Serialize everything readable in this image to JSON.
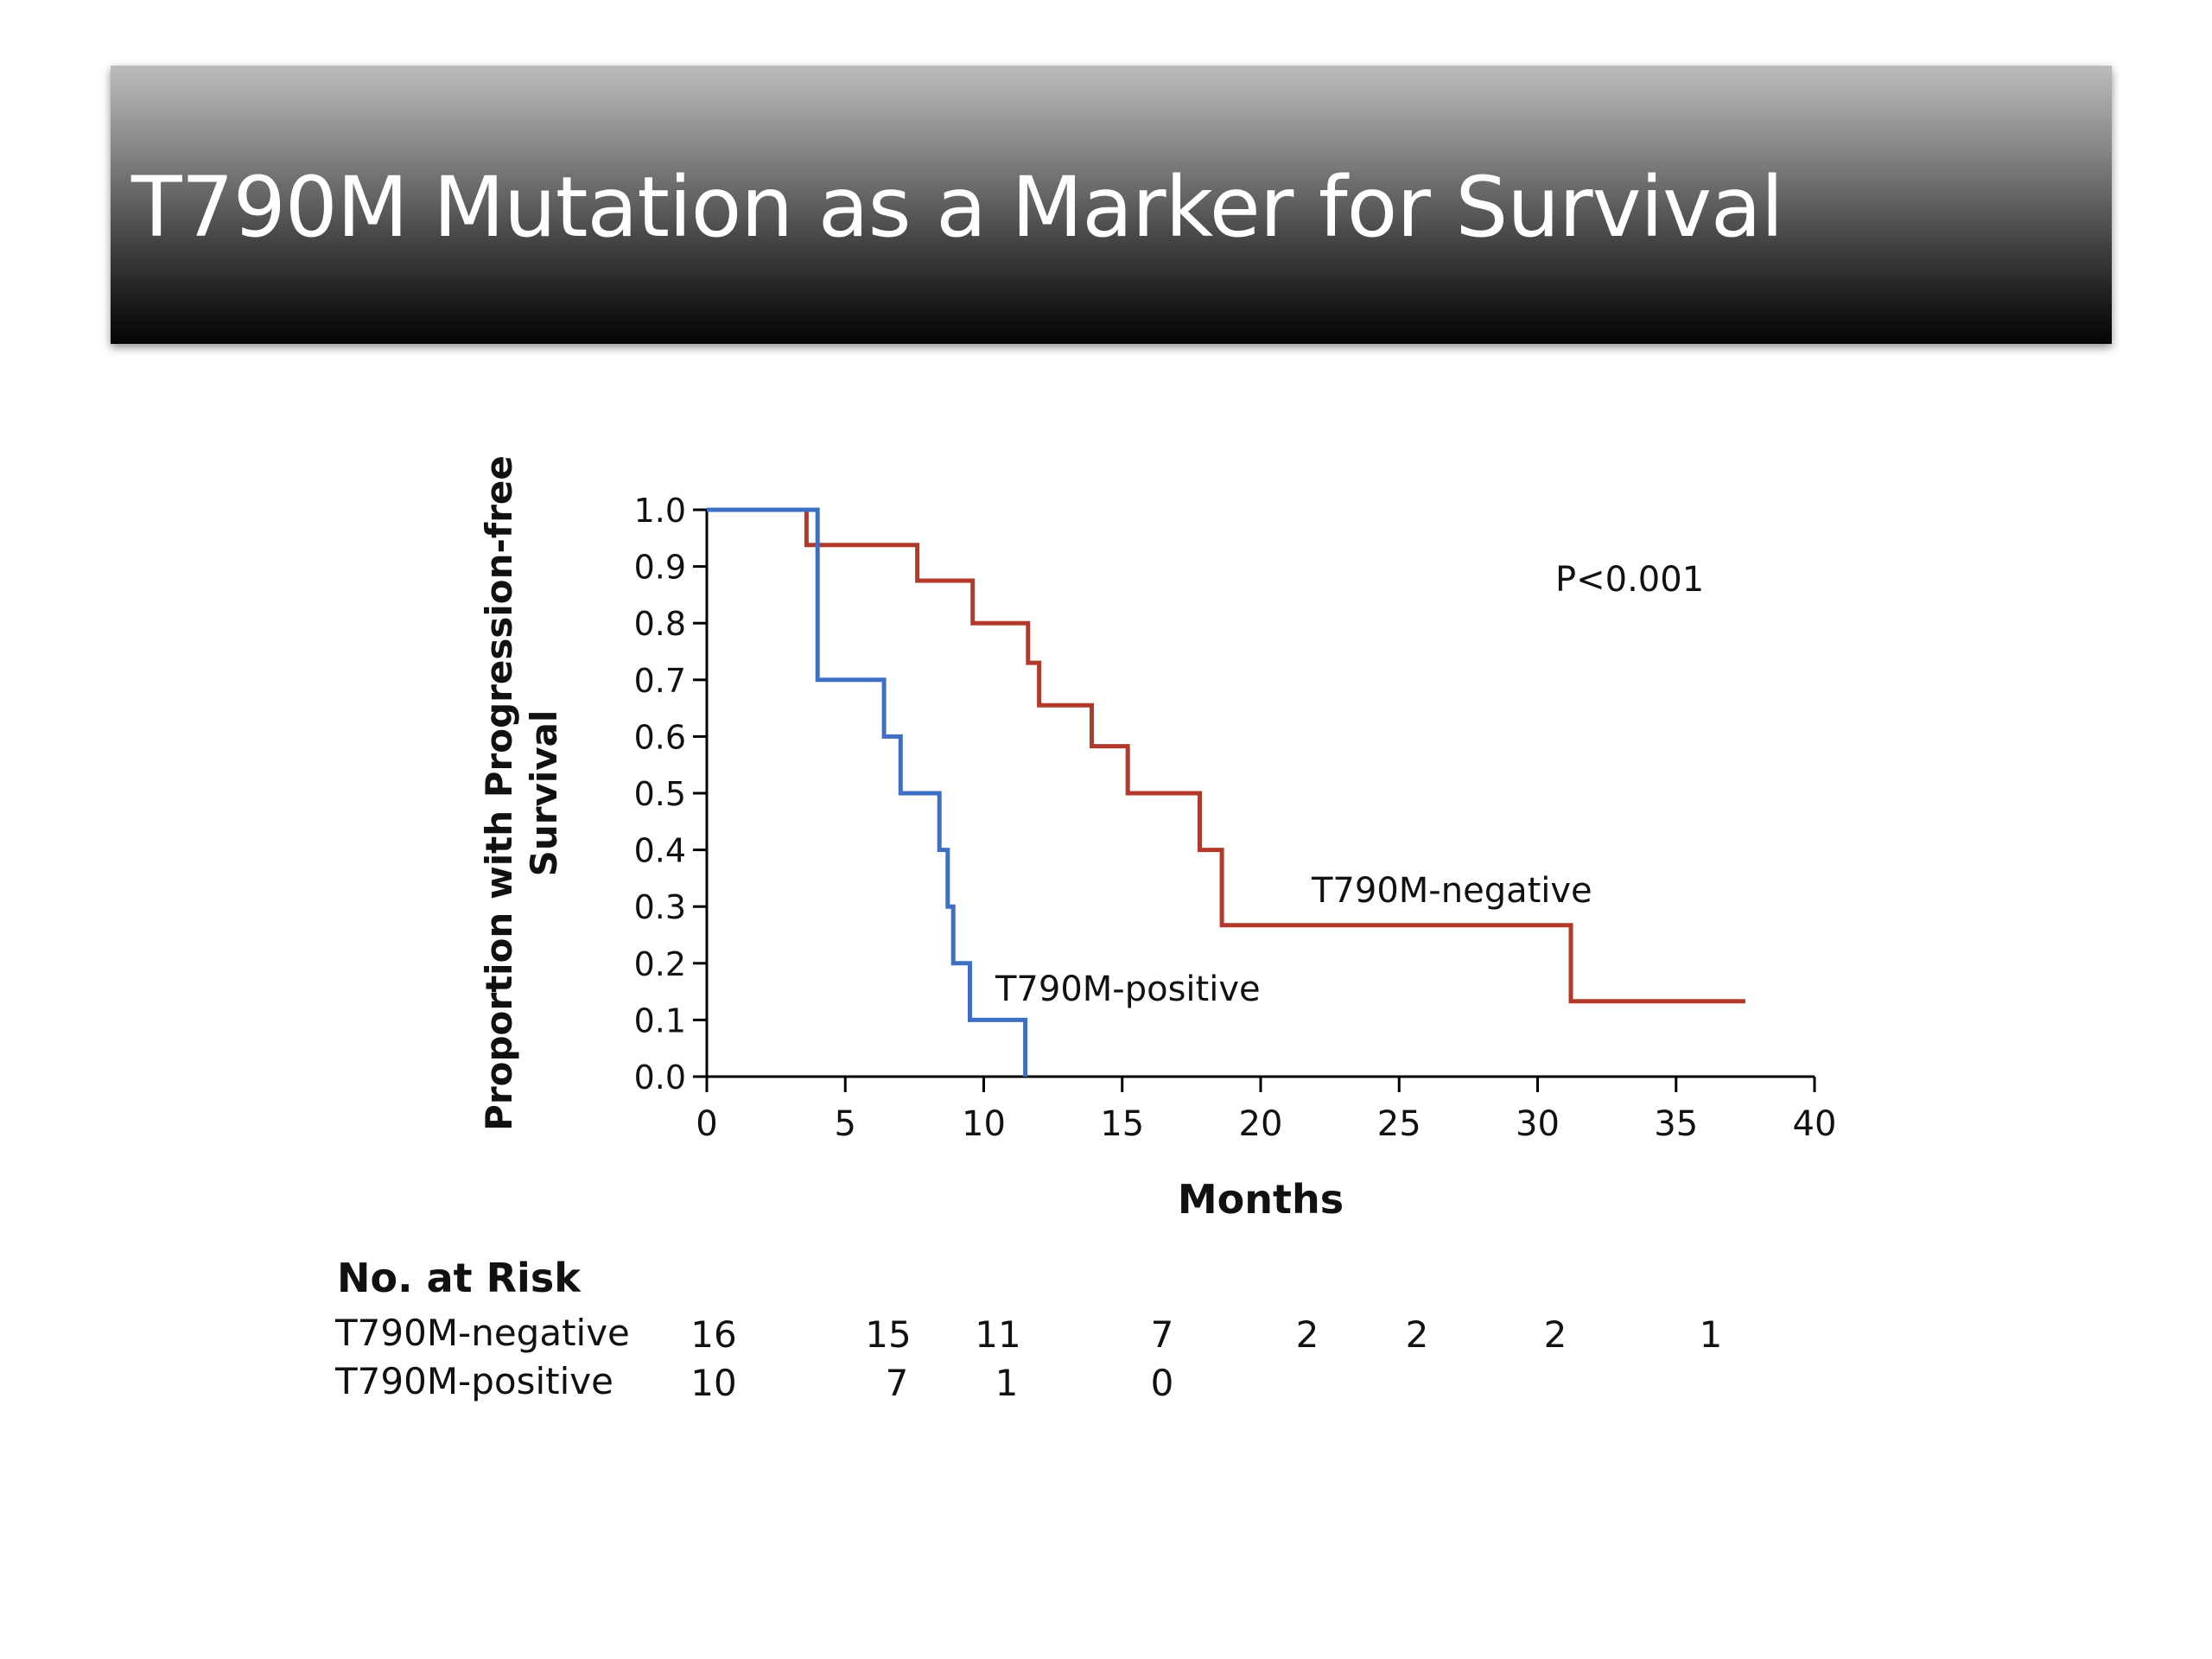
{
  "slide": {
    "title": "T790M Mutation as a Marker for Survival"
  },
  "chart_data": {
    "type": "line",
    "step": true,
    "xlabel": "Months",
    "ylabel": "Proportion with Progression-free Survival",
    "xlim": [
      0,
      40
    ],
    "ylim": [
      0,
      1
    ],
    "x_ticks": [
      "0",
      "5",
      "10",
      "15",
      "20",
      "25",
      "30",
      "35",
      "40"
    ],
    "y_ticks": [
      "0.0",
      "0.1",
      "0.2",
      "0.3",
      "0.4",
      "0.5",
      "0.6",
      "0.7",
      "0.8",
      "0.9",
      "1.0"
    ],
    "annotation": "P<0.001",
    "series": [
      {
        "name": "T790M-negative",
        "color": "#b33a2a",
        "points": [
          [
            0,
            1.0
          ],
          [
            3.6,
            1.0
          ],
          [
            3.6,
            0.938
          ],
          [
            7.6,
            0.938
          ],
          [
            7.6,
            0.875
          ],
          [
            9.6,
            0.875
          ],
          [
            9.6,
            0.8
          ],
          [
            11.6,
            0.8
          ],
          [
            11.6,
            0.73
          ],
          [
            12.0,
            0.73
          ],
          [
            12.0,
            0.655
          ],
          [
            13.9,
            0.655
          ],
          [
            13.9,
            0.583
          ],
          [
            15.2,
            0.583
          ],
          [
            15.2,
            0.5
          ],
          [
            17.8,
            0.5
          ],
          [
            17.8,
            0.4
          ],
          [
            18.6,
            0.4
          ],
          [
            18.6,
            0.267
          ],
          [
            31.2,
            0.267
          ],
          [
            31.2,
            0.133
          ],
          [
            37.5,
            0.133
          ]
        ]
      },
      {
        "name": "T790M-positive",
        "color": "#3f6fc4",
        "points": [
          [
            0,
            1.0
          ],
          [
            4.0,
            1.0
          ],
          [
            4.0,
            0.7
          ],
          [
            6.4,
            0.7
          ],
          [
            6.4,
            0.6
          ],
          [
            7.0,
            0.6
          ],
          [
            7.0,
            0.5
          ],
          [
            8.4,
            0.5
          ],
          [
            8.4,
            0.4
          ],
          [
            8.7,
            0.4
          ],
          [
            8.7,
            0.3
          ],
          [
            8.9,
            0.3
          ],
          [
            8.9,
            0.2
          ],
          [
            9.5,
            0.2
          ],
          [
            9.5,
            0.1
          ],
          [
            11.5,
            0.1
          ],
          [
            11.5,
            0.0
          ]
        ]
      }
    ]
  },
  "at_risk": {
    "heading": "No. at Risk",
    "rows": [
      {
        "label": "T790M-negative",
        "values": [
          "16",
          "15",
          "11",
          "7",
          "2",
          "2",
          "2",
          "1"
        ]
      },
      {
        "label": "T790M-positive",
        "values": [
          "10",
          "7",
          "1",
          "0"
        ]
      }
    ]
  }
}
